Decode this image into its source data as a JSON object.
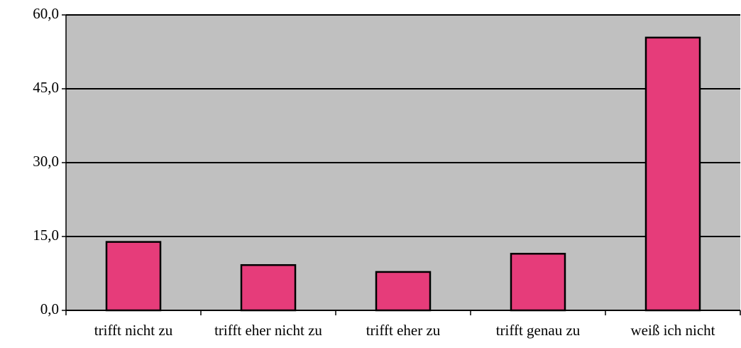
{
  "chart_data": {
    "type": "bar",
    "categories": [
      "trifft nicht zu",
      "trifft eher nicht zu",
      "trifft eher zu",
      "trifft genau zu",
      "weiß ich nicht"
    ],
    "values": [
      13.9,
      9.2,
      7.8,
      11.5,
      55.4
    ],
    "color": "#e63c7a",
    "ylim": [
      0,
      60
    ],
    "yticks": [
      {
        "value": 0,
        "label": "0,0"
      },
      {
        "value": 15,
        "label": "15,0"
      },
      {
        "value": 30,
        "label": "30,0"
      },
      {
        "value": 45,
        "label": "45,0"
      },
      {
        "value": 60,
        "label": "60,0"
      }
    ],
    "grid": true
  }
}
